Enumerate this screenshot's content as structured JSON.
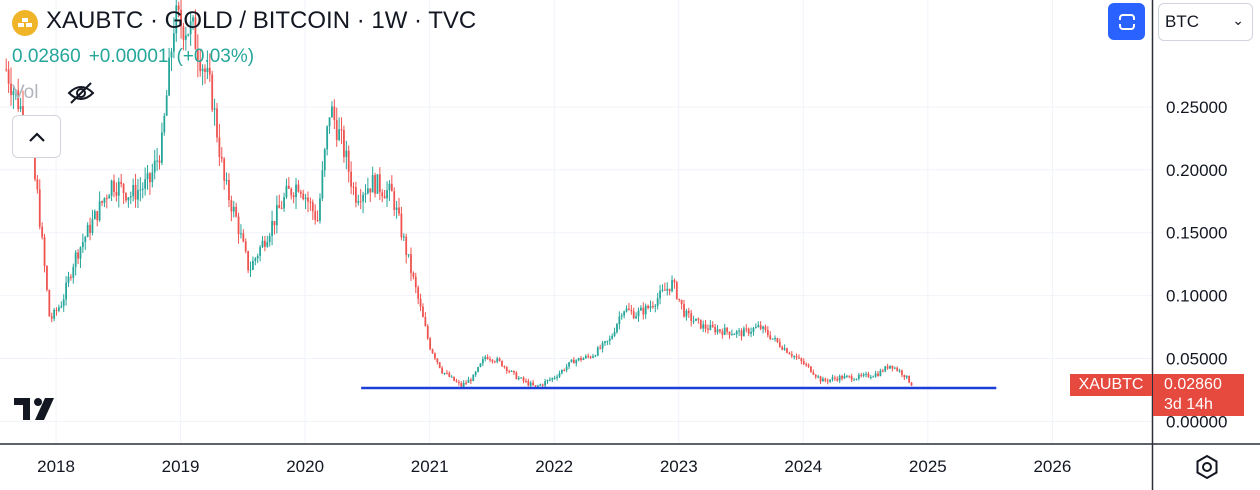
{
  "header": {
    "title": "XAUBTC · GOLD / BITCOIN · 1W · TVC",
    "price": {
      "last": "0.02860",
      "change": "+0.00001",
      "change_pct": "(+0.03%)"
    },
    "vol_label": "Vol",
    "logo_icon": "gold-bars-icon"
  },
  "toolbar": {
    "symbol_button_icon": "chart-frame-icon",
    "currency": "BTC"
  },
  "last_price_tag": {
    "symbol": "XAUBTC",
    "value": "0.02860",
    "countdown": "3d 14h"
  },
  "colors": {
    "up": "#26a69a",
    "down": "#ef5350",
    "line": "#1c3fd8",
    "tag": "#e64a3f"
  },
  "chart_data": {
    "type": "candlestick",
    "title": "XAUBTC · GOLD / BITCOIN · 1W · TVC",
    "xlabel": "",
    "ylabel": "",
    "xlim": [
      2017.55,
      2026.8
    ],
    "ylim": [
      -0.018,
      0.335
    ],
    "x_ticks": [
      "2018",
      "2019",
      "2020",
      "2021",
      "2022",
      "2023",
      "2024",
      "2025",
      "2026"
    ],
    "y_ticks": [
      "0.25000",
      "0.20000",
      "0.15000",
      "0.10000",
      "0.05000",
      "0.00000"
    ],
    "grid": true,
    "horizontal_line": {
      "y": 0.0265,
      "x_start": 2020.45,
      "x_end": 2025.55,
      "color": "#1c3fd8"
    },
    "close_path": [
      [
        2017.6,
        0.28
      ],
      [
        2017.75,
        0.24
      ],
      [
        2017.85,
        0.18
      ],
      [
        2017.95,
        0.08
      ],
      [
        2018.05,
        0.095
      ],
      [
        2018.15,
        0.13
      ],
      [
        2018.3,
        0.16
      ],
      [
        2018.45,
        0.19
      ],
      [
        2018.6,
        0.18
      ],
      [
        2018.75,
        0.19
      ],
      [
        2018.85,
        0.22
      ],
      [
        2018.95,
        0.32
      ],
      [
        2019.1,
        0.31
      ],
      [
        2019.25,
        0.26
      ],
      [
        2019.35,
        0.19
      ],
      [
        2019.45,
        0.16
      ],
      [
        2019.55,
        0.12
      ],
      [
        2019.7,
        0.15
      ],
      [
        2019.85,
        0.18
      ],
      [
        2019.95,
        0.19
      ],
      [
        2020.1,
        0.16
      ],
      [
        2020.2,
        0.25
      ],
      [
        2020.3,
        0.22
      ],
      [
        2020.4,
        0.18
      ],
      [
        2020.55,
        0.19
      ],
      [
        2020.7,
        0.18
      ],
      [
        2020.8,
        0.14
      ],
      [
        2020.9,
        0.1
      ],
      [
        2021.0,
        0.06
      ],
      [
        2021.1,
        0.04
      ],
      [
        2021.25,
        0.028
      ],
      [
        2021.35,
        0.035
      ],
      [
        2021.45,
        0.052
      ],
      [
        2021.55,
        0.048
      ],
      [
        2021.7,
        0.035
      ],
      [
        2021.85,
        0.027
      ],
      [
        2022.0,
        0.035
      ],
      [
        2022.15,
        0.048
      ],
      [
        2022.3,
        0.052
      ],
      [
        2022.45,
        0.065
      ],
      [
        2022.55,
        0.09
      ],
      [
        2022.65,
        0.085
      ],
      [
        2022.75,
        0.09
      ],
      [
        2022.85,
        0.1
      ],
      [
        2022.95,
        0.11
      ],
      [
        2023.05,
        0.085
      ],
      [
        2023.2,
        0.075
      ],
      [
        2023.35,
        0.072
      ],
      [
        2023.5,
        0.07
      ],
      [
        2023.65,
        0.075
      ],
      [
        2023.8,
        0.062
      ],
      [
        2023.95,
        0.05
      ],
      [
        2024.05,
        0.042
      ],
      [
        2024.15,
        0.032
      ],
      [
        2024.3,
        0.035
      ],
      [
        2024.45,
        0.035
      ],
      [
        2024.6,
        0.038
      ],
      [
        2024.7,
        0.045
      ],
      [
        2024.8,
        0.038
      ],
      [
        2024.88,
        0.0286
      ]
    ],
    "last_value": 0.0286
  }
}
